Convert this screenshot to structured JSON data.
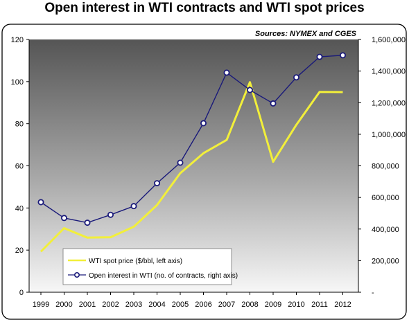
{
  "title": "Open interest in WTI contracts and WTI spot prices",
  "chart_data": {
    "type": "line",
    "title": "Open interest in WTI contracts and WTI spot prices",
    "source_note": "Sources: NYMEX and CGES",
    "x": [
      "1999",
      "2000",
      "2001",
      "2002",
      "2003",
      "2004",
      "2005",
      "2006",
      "2007",
      "2008",
      "2009",
      "2010",
      "2011",
      "2012"
    ],
    "left_axis": {
      "ylim": [
        0,
        120
      ],
      "ticks": [
        "0",
        "20",
        "40",
        "60",
        "80",
        "100",
        "120"
      ]
    },
    "right_axis": {
      "ylim": [
        0,
        1600000
      ],
      "ticks": [
        "-",
        "200,000",
        "400,000",
        "600,000",
        "800,000",
        "1,000,000",
        "1,200,000",
        "1,400,000",
        "1,600,000"
      ]
    },
    "series": [
      {
        "name": "WTI spot price ($/bbl, left axis)",
        "axis": "left",
        "color": "#f2ef3a",
        "values": [
          19.3,
          30.4,
          25.9,
          26.1,
          31.1,
          41.4,
          56.5,
          66.0,
          72.3,
          99.7,
          61.9,
          79.5,
          95.1,
          95.0
        ]
      },
      {
        "name": "Open interest in WTI (no. of contracts, right axis)",
        "axis": "right",
        "color": "#1a1a7a",
        "marker": "circle",
        "values": [
          570000,
          470000,
          440000,
          490000,
          545000,
          690000,
          820000,
          1070000,
          1390000,
          1280000,
          1195000,
          1360000,
          1490000,
          1500000
        ]
      }
    ],
    "grid": false,
    "legend_position": "bottom-left"
  }
}
